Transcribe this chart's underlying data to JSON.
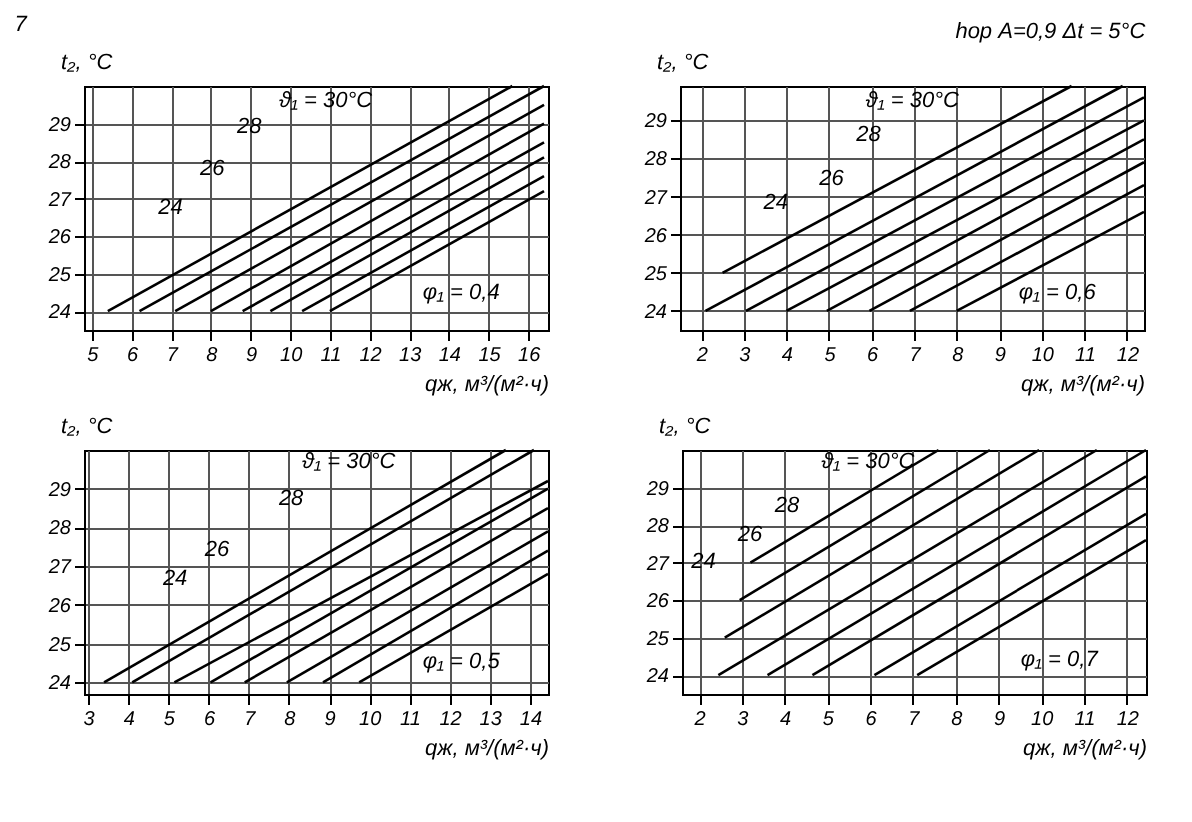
{
  "chart_data": [
    {
      "type": "line",
      "xlabel": "qж, м³/(м²·ч)",
      "ylabel": "t₂, °C",
      "annotations": [
        "7",
        "ϑ₁ = 30°C",
        "28",
        "26",
        "24",
        "φ₁ = 0,4"
      ],
      "xlim": [
        4.8,
        16.5
      ],
      "ylim": [
        23.5,
        30
      ],
      "xticks": [
        5,
        6,
        7,
        8,
        9,
        10,
        11,
        12,
        13,
        14,
        15,
        16
      ],
      "yticks": [
        24,
        25,
        26,
        27,
        28,
        29
      ],
      "grid": true,
      "line_style": "solid",
      "marker": "none",
      "series": [
        {
          "color": "#000000",
          "x": [
            5.4,
            15.6
          ],
          "values": [
            24,
            30
          ]
        },
        {
          "color": "#000000",
          "x": [
            6.2,
            16.4
          ],
          "values": [
            24,
            30.0
          ]
        },
        {
          "color": "#000000",
          "x": [
            7.1,
            16.4
          ],
          "values": [
            24,
            29.5
          ]
        },
        {
          "color": "#000000",
          "x": [
            8.0,
            16.4
          ],
          "values": [
            24,
            29.0
          ]
        },
        {
          "color": "#000000",
          "x": [
            8.8,
            16.4
          ],
          "values": [
            24,
            28.5
          ]
        },
        {
          "color": "#000000",
          "x": [
            9.5,
            16.4
          ],
          "values": [
            24,
            28.1
          ]
        },
        {
          "color": "#000000",
          "x": [
            10.3,
            16.4
          ],
          "values": [
            24,
            27.6
          ]
        },
        {
          "color": "#000000",
          "x": [
            11.0,
            16.4
          ],
          "values": [
            24,
            27.2
          ]
        }
      ]
    },
    {
      "type": "line",
      "subtitle": "hор A=0,9   Δt = 5°C",
      "xlabel": "qж, м³/(м²·ч)",
      "ylabel": "t₂, °C",
      "annotations": [
        "ϑ₁ = 30°C",
        "28",
        "26",
        "24",
        "φ₁ = 0,6"
      ],
      "xlim": [
        1.5,
        12.4
      ],
      "ylim": [
        23.5,
        29.9
      ],
      "xticks": [
        2,
        3,
        4,
        5,
        6,
        7,
        8,
        9,
        10,
        11,
        12
      ],
      "yticks": [
        24,
        25,
        26,
        27,
        28,
        29
      ],
      "grid": true,
      "line_style": "solid",
      "marker": "none",
      "series": [
        {
          "color": "#000000",
          "x": [
            2.5,
            10.7
          ],
          "values": [
            25,
            29.9
          ]
        },
        {
          "color": "#000000",
          "x": [
            2.1,
            11.9
          ],
          "values": [
            24,
            29.9
          ]
        },
        {
          "color": "#000000",
          "x": [
            3.05,
            12.4
          ],
          "values": [
            24,
            29.6
          ]
        },
        {
          "color": "#000000",
          "x": [
            4.0,
            12.4
          ],
          "values": [
            24,
            29.0
          ]
        },
        {
          "color": "#000000",
          "x": [
            4.95,
            12.4
          ],
          "values": [
            24,
            28.5
          ]
        },
        {
          "color": "#000000",
          "x": [
            5.95,
            12.4
          ],
          "values": [
            24,
            27.9
          ]
        },
        {
          "color": "#000000",
          "x": [
            6.9,
            12.4
          ],
          "values": [
            24,
            27.3
          ]
        },
        {
          "color": "#000000",
          "x": [
            8.0,
            12.4
          ],
          "values": [
            24,
            26.6
          ]
        }
      ]
    },
    {
      "type": "line",
      "xlabel": "qж, м³/(м²·ч)",
      "ylabel": "t₂, °C",
      "annotations": [
        "ϑ₁ = 30°C",
        "28",
        "26",
        "24",
        "φ₁ = 0,5"
      ],
      "xlim": [
        2.9,
        14.45
      ],
      "ylim": [
        23.7,
        30
      ],
      "xticks": [
        3,
        4,
        5,
        6,
        7,
        8,
        9,
        10,
        11,
        12,
        13,
        14
      ],
      "yticks": [
        24,
        25,
        26,
        27,
        28,
        29
      ],
      "grid": true,
      "line_style": "solid",
      "marker": "none",
      "series": [
        {
          "color": "#000000",
          "x": [
            3.4,
            13.4
          ],
          "values": [
            24,
            30
          ]
        },
        {
          "color": "#000000",
          "x": [
            4.1,
            14.1
          ],
          "values": [
            24,
            30
          ]
        },
        {
          "color": "#000000",
          "x": [
            5.15,
            14.45
          ],
          "values": [
            24,
            29.2
          ]
        },
        {
          "color": "#000000",
          "x": [
            6.05,
            14.45
          ],
          "values": [
            24,
            29.0
          ]
        },
        {
          "color": "#000000",
          "x": [
            6.9,
            14.45
          ],
          "values": [
            24,
            28.5
          ]
        },
        {
          "color": "#000000",
          "x": [
            7.95,
            14.45
          ],
          "values": [
            24,
            27.9
          ]
        },
        {
          "color": "#000000",
          "x": [
            8.85,
            14.45
          ],
          "values": [
            24,
            27.4
          ]
        },
        {
          "color": "#000000",
          "x": [
            9.75,
            14.45
          ],
          "values": [
            24,
            26.8
          ]
        }
      ]
    },
    {
      "type": "line",
      "xlabel": "qж, м³/(м²·ч)",
      "ylabel": "t₂, °C",
      "annotations": [
        "ϑ₁ = 30°C",
        "28",
        "26",
        "24",
        "φ₁ = 0,7"
      ],
      "xlim": [
        1.6,
        12.45
      ],
      "ylim": [
        23.5,
        30
      ],
      "xticks": [
        2,
        3,
        4,
        5,
        6,
        7,
        8,
        9,
        10,
        11,
        12
      ],
      "yticks": [
        24,
        25,
        26,
        27,
        28,
        29
      ],
      "grid": true,
      "line_style": "solid",
      "marker": "none",
      "series": [
        {
          "color": "#000000",
          "x": [
            3.2,
            7.6
          ],
          "values": [
            27,
            30
          ]
        },
        {
          "color": "#000000",
          "x": [
            2.95,
            8.8
          ],
          "values": [
            26,
            30
          ]
        },
        {
          "color": "#000000",
          "x": [
            2.6,
            9.95
          ],
          "values": [
            25,
            30
          ]
        },
        {
          "color": "#000000",
          "x": [
            2.45,
            11.3
          ],
          "values": [
            24,
            30
          ]
        },
        {
          "color": "#000000",
          "x": [
            3.6,
            12.45
          ],
          "values": [
            24,
            30.0
          ]
        },
        {
          "color": "#000000",
          "x": [
            4.65,
            12.45
          ],
          "values": [
            24,
            29.3
          ]
        },
        {
          "color": "#000000",
          "x": [
            6.1,
            12.45
          ],
          "values": [
            24,
            28.3
          ]
        },
        {
          "color": "#000000",
          "x": [
            7.1,
            12.45
          ],
          "values": [
            24,
            27.6
          ]
        }
      ]
    }
  ]
}
